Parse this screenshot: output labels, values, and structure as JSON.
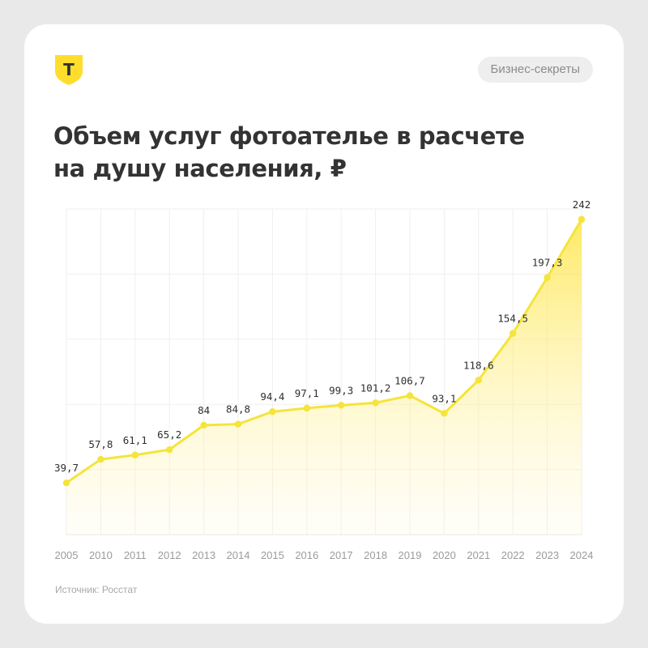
{
  "brand": {
    "logo_letter": "Т",
    "logo_color": "#ffdd2d"
  },
  "tag": {
    "label": "Бизнес-секреты"
  },
  "title": {
    "line1": "Объем услуг фотоателье в расчете",
    "line2": "на душу населения, ₽"
  },
  "source": {
    "text": "Источник: Росстат"
  },
  "chart_data": {
    "type": "area",
    "title": "Объем услуг фотоателье в расчете на душу населения, ₽",
    "xlabel": "",
    "ylabel": "",
    "categories": [
      "2005",
      "2010",
      "2011",
      "2012",
      "2013",
      "2014",
      "2015",
      "2016",
      "2017",
      "2018",
      "2019",
      "2020",
      "2021",
      "2022",
      "2023",
      "2024"
    ],
    "values": [
      39.7,
      57.8,
      61.1,
      65.2,
      84,
      84.8,
      94.4,
      97.1,
      99.3,
      101.2,
      106.7,
      93.1,
      118.6,
      154.5,
      197.3,
      242
    ],
    "value_labels": [
      "39,7",
      "57,8",
      "61,1",
      "65,2",
      "84",
      "84,8",
      "94,4",
      "97,1",
      "99,3",
      "101,2",
      "106,7",
      "93,1",
      "118,6",
      "154,5",
      "197,3",
      "242"
    ],
    "ylim": [
      0,
      250
    ],
    "grid": true,
    "legend": "none",
    "line_color": "#f5e43a",
    "fill_color": "#ffe74a"
  }
}
